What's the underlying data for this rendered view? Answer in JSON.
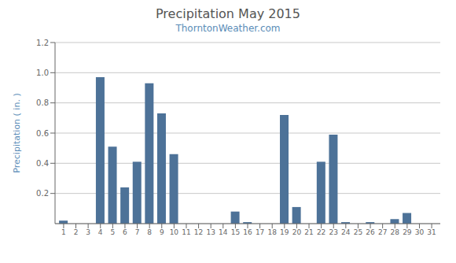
{
  "chart_data": {
    "type": "bar",
    "title": "Precipitation May 2015",
    "subtitle": "ThorntonWeather.com",
    "ylabel": "Precipitation ( in. )",
    "x": [
      1,
      2,
      3,
      4,
      5,
      6,
      7,
      8,
      9,
      10,
      11,
      12,
      13,
      14,
      15,
      16,
      17,
      18,
      19,
      20,
      21,
      22,
      23,
      24,
      25,
      26,
      27,
      28,
      29,
      30,
      31
    ],
    "values": [
      0.02,
      0.0,
      0.0,
      0.97,
      0.51,
      0.24,
      0.41,
      0.93,
      0.73,
      0.46,
      0.0,
      0.0,
      0.0,
      0.0,
      0.08,
      0.01,
      0.0,
      0.0,
      0.72,
      0.11,
      0.0,
      0.41,
      0.59,
      0.01,
      0.0,
      0.01,
      0.0,
      0.03,
      0.07,
      0.0,
      0.0
    ],
    "color": "#4d7298",
    "xlim": [
      0.3,
      31.7
    ],
    "xticks": [
      1,
      2,
      3,
      4,
      5,
      6,
      7,
      8,
      9,
      10,
      11,
      12,
      13,
      14,
      15,
      16,
      17,
      18,
      19,
      20,
      21,
      22,
      23,
      24,
      25,
      26,
      27,
      28,
      29,
      30,
      31
    ],
    "ylim": [
      0,
      1.2
    ],
    "yticks": [
      0.2,
      0.4,
      0.6,
      0.8,
      {
        "value": 1,
        "label": "1.0"
      },
      1.2
    ],
    "grid": true
  }
}
